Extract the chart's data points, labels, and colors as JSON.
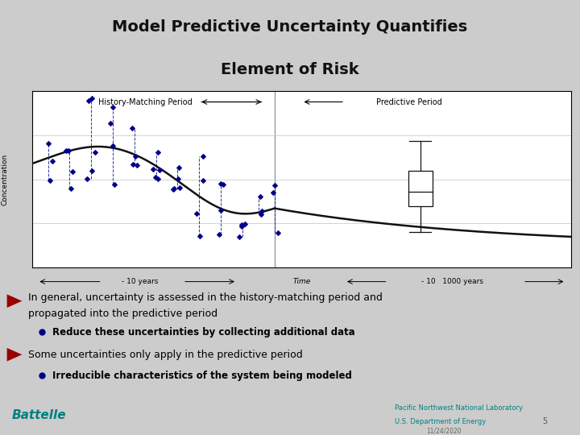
{
  "title_line1": "Model Predictive Uncertainty Quantifies",
  "title_line2": "Element of Risk",
  "title_color": "#111111",
  "bg_color": "#cccccc",
  "chart_bg": "#ffffff",
  "bullet1a": "In general, uncertainty is assessed in the history-matching period and",
  "bullet1b": "propagated into the predictive period",
  "sub_bullet1": "Reduce these uncertainties by collecting additional data",
  "bullet2": "Some uncertainties only apply in the predictive period",
  "sub_bullet2": "Irreducible characteristics of the system being modeled",
  "history_label": "History-Matching Period",
  "predictive_label": "Predictive Period",
  "xlabel": "Time",
  "ylabel": "Concentration",
  "bottom_left_label": "- 10 years",
  "bottom_right_label": "- 10   1000 years",
  "teal_dark": "#2d7d7a",
  "teal_light": "#5aaeaa",
  "battelle_color": "#008080",
  "pnnl_color": "#008080",
  "scatter_color": "#00008b",
  "curve_color": "#111111",
  "box_color": "#111111",
  "bullet_arrow_color": "#990000",
  "sub_bullet_color": "#00008b",
  "gray_bg": "#d0d0d0"
}
